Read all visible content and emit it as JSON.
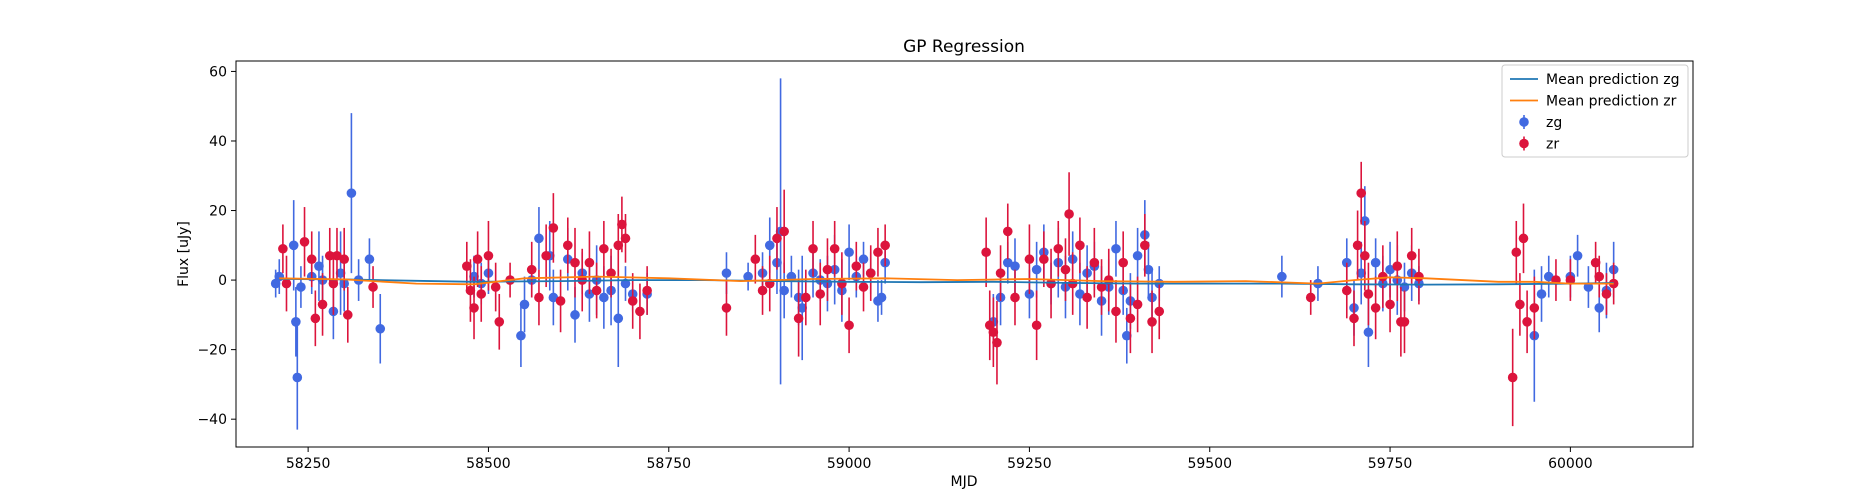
{
  "chart_data": {
    "type": "scatter",
    "title": "GP Regression",
    "xlabel": "MJD",
    "ylabel": "Flux [uJy]",
    "xlim": [
      58150,
      60170
    ],
    "ylim": [
      -48,
      63
    ],
    "xticks": [
      58250,
      58500,
      58750,
      59000,
      59250,
      59500,
      59750,
      60000
    ],
    "yticks": [
      -40,
      -20,
      0,
      20,
      40,
      60
    ],
    "xtick_labels": [
      "58250",
      "58500",
      "58750",
      "59000",
      "59250",
      "59500",
      "59750",
      "60000"
    ],
    "ytick_labels": [
      "−40",
      "−20",
      "0",
      "20",
      "40",
      "60"
    ],
    "grid": false,
    "legend_position": "top-right",
    "lines": [
      {
        "name": "Mean prediction zg",
        "color": "#1f77b4",
        "x": [
          58210,
          58300,
          58400,
          58480,
          58600,
          58700,
          58800,
          58900,
          59000,
          59100,
          59200,
          59300,
          59400,
          59500,
          59600,
          59700,
          59800,
          59900,
          60000,
          60060
        ],
        "y": [
          0.3,
          0.2,
          -0.2,
          -0.5,
          -0.3,
          0.0,
          0.0,
          -0.3,
          -0.5,
          -0.6,
          -0.5,
          -0.8,
          -1.0,
          -1.0,
          -1.0,
          -1.2,
          -1.3,
          -1.2,
          -1.0,
          -0.8
        ]
      },
      {
        "name": "Mean prediction zr",
        "color": "#ff7f0e",
        "x": [
          58210,
          58300,
          58400,
          58480,
          58550,
          58650,
          58750,
          58850,
          58950,
          59050,
          59150,
          59250,
          59350,
          59450,
          59550,
          59650,
          59700,
          59750,
          59800,
          59900,
          59950,
          60000,
          60060
        ],
        "y": [
          0.5,
          0.2,
          -1.0,
          -1.2,
          0.5,
          1.0,
          0.5,
          -0.3,
          0.3,
          0.5,
          0.0,
          0.3,
          -0.3,
          -0.5,
          -0.3,
          -1.0,
          0.0,
          0.8,
          0.5,
          -0.5,
          -0.5,
          -1.0,
          -1.0
        ]
      }
    ],
    "series": [
      {
        "name": "zg",
        "color": "#4169e1",
        "points": [
          [
            58205,
            -1,
            4
          ],
          [
            58210,
            1,
            5
          ],
          [
            58230,
            10,
            13
          ],
          [
            58233,
            -12,
            10
          ],
          [
            58235,
            -28,
            15
          ],
          [
            58240,
            -2,
            6
          ],
          [
            58255,
            1,
            5
          ],
          [
            58265,
            4,
            10
          ],
          [
            58270,
            0,
            7
          ],
          [
            58285,
            -9,
            8
          ],
          [
            58295,
            2,
            12
          ],
          [
            58300,
            -1,
            8
          ],
          [
            58310,
            25,
            23
          ],
          [
            58320,
            0,
            6
          ],
          [
            58335,
            6,
            6
          ],
          [
            58350,
            -14,
            10
          ],
          [
            58480,
            1,
            6
          ],
          [
            58490,
            -1,
            6
          ],
          [
            58500,
            2,
            6
          ],
          [
            58545,
            -16,
            9
          ],
          [
            58550,
            -7,
            8
          ],
          [
            58560,
            0,
            5
          ],
          [
            58570,
            12,
            9
          ],
          [
            58585,
            7,
            10
          ],
          [
            58590,
            -5,
            8
          ],
          [
            58610,
            6,
            9
          ],
          [
            58620,
            -10,
            8
          ],
          [
            58630,
            2,
            6
          ],
          [
            58640,
            -4,
            8
          ],
          [
            58650,
            0,
            10
          ],
          [
            58660,
            -5,
            9
          ],
          [
            58670,
            -3,
            10
          ],
          [
            58680,
            -11,
            14
          ],
          [
            58690,
            -1,
            5
          ],
          [
            58700,
            -4,
            5
          ],
          [
            58720,
            -4,
            6
          ],
          [
            58830,
            2,
            6
          ],
          [
            58860,
            1,
            4
          ],
          [
            58880,
            2,
            6
          ],
          [
            58890,
            10,
            8
          ],
          [
            58900,
            5,
            9
          ],
          [
            58905,
            14,
            44
          ],
          [
            58910,
            -3,
            8
          ],
          [
            58920,
            1,
            6
          ],
          [
            58930,
            -5,
            8
          ],
          [
            58935,
            -8,
            15
          ],
          [
            58950,
            2,
            7
          ],
          [
            58960,
            0,
            6
          ],
          [
            58970,
            -1,
            8
          ],
          [
            58980,
            3,
            10
          ],
          [
            58990,
            -3,
            9
          ],
          [
            59000,
            8,
            8
          ],
          [
            59010,
            1,
            6
          ],
          [
            59020,
            6,
            5
          ],
          [
            59030,
            2,
            6
          ],
          [
            59040,
            -6,
            6
          ],
          [
            59045,
            -5,
            5
          ],
          [
            59050,
            5,
            6
          ],
          [
            59200,
            -12,
            8
          ],
          [
            59210,
            -5,
            8
          ],
          [
            59220,
            5,
            6
          ],
          [
            59230,
            4,
            8
          ],
          [
            59250,
            -4,
            7
          ],
          [
            59260,
            3,
            8
          ],
          [
            59270,
            8,
            8
          ],
          [
            59280,
            -1,
            6
          ],
          [
            59290,
            5,
            10
          ],
          [
            59300,
            -2,
            9
          ],
          [
            59310,
            6,
            8
          ],
          [
            59320,
            -4,
            9
          ],
          [
            59330,
            2,
            8
          ],
          [
            59340,
            4,
            7
          ],
          [
            59350,
            -6,
            10
          ],
          [
            59360,
            -2,
            8
          ],
          [
            59370,
            9,
            8
          ],
          [
            59380,
            -3,
            7
          ],
          [
            59385,
            -16,
            8
          ],
          [
            59390,
            -6,
            8
          ],
          [
            59400,
            7,
            8
          ],
          [
            59410,
            13,
            10
          ],
          [
            59415,
            3,
            8
          ],
          [
            59420,
            -5,
            8
          ],
          [
            59430,
            -1,
            5
          ],
          [
            59600,
            1,
            6
          ],
          [
            59650,
            -1,
            5
          ],
          [
            59690,
            5,
            7
          ],
          [
            59700,
            -8,
            8
          ],
          [
            59710,
            2,
            9
          ],
          [
            59715,
            17,
            10
          ],
          [
            59720,
            -15,
            10
          ],
          [
            59730,
            5,
            7
          ],
          [
            59740,
            -1,
            8
          ],
          [
            59750,
            3,
            8
          ],
          [
            59760,
            0,
            10
          ],
          [
            59770,
            -2,
            7
          ],
          [
            59780,
            2,
            8
          ],
          [
            59790,
            -1,
            5
          ],
          [
            59950,
            -16,
            19
          ],
          [
            59960,
            -4,
            8
          ],
          [
            59970,
            1,
            6
          ],
          [
            60000,
            1,
            6
          ],
          [
            60010,
            7,
            6
          ],
          [
            60025,
            -2,
            6
          ],
          [
            60040,
            -8,
            7
          ],
          [
            60050,
            -3,
            8
          ],
          [
            60060,
            3,
            8
          ]
        ]
      },
      {
        "name": "zr",
        "color": "#dc143c",
        "points": [
          [
            58215,
            9,
            7
          ],
          [
            58220,
            -1,
            8
          ],
          [
            58245,
            11,
            10
          ],
          [
            58255,
            6,
            8
          ],
          [
            58260,
            -11,
            8
          ],
          [
            58270,
            -7,
            9
          ],
          [
            58280,
            7,
            8
          ],
          [
            58285,
            -1,
            9
          ],
          [
            58290,
            7,
            8
          ],
          [
            58300,
            6,
            9
          ],
          [
            58305,
            -10,
            8
          ],
          [
            58340,
            -2,
            6
          ],
          [
            58470,
            4,
            7
          ],
          [
            58475,
            -3,
            9
          ],
          [
            58480,
            -8,
            9
          ],
          [
            58485,
            6,
            8
          ],
          [
            58490,
            -4,
            8
          ],
          [
            58500,
            7,
            10
          ],
          [
            58510,
            -2,
            7
          ],
          [
            58515,
            -12,
            8
          ],
          [
            58530,
            0,
            5
          ],
          [
            58560,
            3,
            8
          ],
          [
            58570,
            -5,
            8
          ],
          [
            58580,
            7,
            9
          ],
          [
            58590,
            15,
            10
          ],
          [
            58600,
            -6,
            9
          ],
          [
            58610,
            10,
            8
          ],
          [
            58620,
            5,
            10
          ],
          [
            58630,
            0,
            9
          ],
          [
            58640,
            5,
            9
          ],
          [
            58650,
            -3,
            8
          ],
          [
            58660,
            9,
            8
          ],
          [
            58670,
            2,
            7
          ],
          [
            58680,
            10,
            9
          ],
          [
            58685,
            16,
            8
          ],
          [
            58690,
            12,
            7
          ],
          [
            58700,
            -6,
            8
          ],
          [
            58710,
            -9,
            8
          ],
          [
            58720,
            -3,
            7
          ],
          [
            58830,
            -8,
            8
          ],
          [
            58870,
            6,
            7
          ],
          [
            58880,
            -3,
            7
          ],
          [
            58890,
            -1,
            8
          ],
          [
            58900,
            12,
            9
          ],
          [
            58910,
            14,
            12
          ],
          [
            58930,
            -11,
            11
          ],
          [
            58940,
            -5,
            8
          ],
          [
            58950,
            9,
            8
          ],
          [
            58960,
            -4,
            9
          ],
          [
            58970,
            3,
            9
          ],
          [
            58980,
            9,
            8
          ],
          [
            58990,
            -1,
            9
          ],
          [
            59000,
            -13,
            8
          ],
          [
            59010,
            4,
            7
          ],
          [
            59020,
            -2,
            7
          ],
          [
            59030,
            2,
            8
          ],
          [
            59040,
            8,
            7
          ],
          [
            59050,
            10,
            6
          ],
          [
            59190,
            8,
            10
          ],
          [
            59195,
            -13,
            10
          ],
          [
            59200,
            -15,
            10
          ],
          [
            59205,
            -18,
            12
          ],
          [
            59210,
            2,
            8
          ],
          [
            59220,
            14,
            8
          ],
          [
            59230,
            -5,
            8
          ],
          [
            59250,
            6,
            10
          ],
          [
            59260,
            -13,
            10
          ],
          [
            59270,
            6,
            8
          ],
          [
            59280,
            -1,
            10
          ],
          [
            59290,
            9,
            8
          ],
          [
            59300,
            3,
            9
          ],
          [
            59305,
            19,
            12
          ],
          [
            59310,
            -1,
            9
          ],
          [
            59320,
            10,
            8
          ],
          [
            59330,
            -5,
            9
          ],
          [
            59340,
            5,
            10
          ],
          [
            59350,
            -2,
            8
          ],
          [
            59360,
            0,
            9
          ],
          [
            59370,
            -9,
            9
          ],
          [
            59380,
            5,
            9
          ],
          [
            59390,
            -11,
            10
          ],
          [
            59400,
            -7,
            8
          ],
          [
            59410,
            10,
            9
          ],
          [
            59420,
            -12,
            9
          ],
          [
            59430,
            -9,
            8
          ],
          [
            59640,
            -5,
            5
          ],
          [
            59690,
            -3,
            8
          ],
          [
            59700,
            -11,
            8
          ],
          [
            59705,
            10,
            10
          ],
          [
            59710,
            25,
            9
          ],
          [
            59715,
            7,
            10
          ],
          [
            59720,
            -4,
            9
          ],
          [
            59730,
            -8,
            9
          ],
          [
            59740,
            1,
            9
          ],
          [
            59750,
            -7,
            8
          ],
          [
            59760,
            4,
            10
          ],
          [
            59765,
            -12,
            10
          ],
          [
            59770,
            -12,
            9
          ],
          [
            59780,
            7,
            8
          ],
          [
            59790,
            1,
            8
          ],
          [
            59920,
            -28,
            14
          ],
          [
            59925,
            8,
            9
          ],
          [
            59930,
            -7,
            9
          ],
          [
            59935,
            12,
            10
          ],
          [
            59940,
            -12,
            9
          ],
          [
            59950,
            -8,
            9
          ],
          [
            59980,
            0,
            6
          ],
          [
            60000,
            0,
            6
          ],
          [
            60035,
            5,
            6
          ],
          [
            60040,
            1,
            6
          ],
          [
            60050,
            -4,
            6
          ],
          [
            60060,
            -1,
            6
          ]
        ]
      }
    ],
    "legend": [
      {
        "label": "Mean prediction zg",
        "kind": "line",
        "color": "#1f77b4"
      },
      {
        "label": "Mean prediction zr",
        "kind": "line",
        "color": "#ff7f0e"
      },
      {
        "label": "zg",
        "kind": "errorbar",
        "color": "#4169e1"
      },
      {
        "label": "zr",
        "kind": "errorbar",
        "color": "#dc143c"
      }
    ]
  }
}
